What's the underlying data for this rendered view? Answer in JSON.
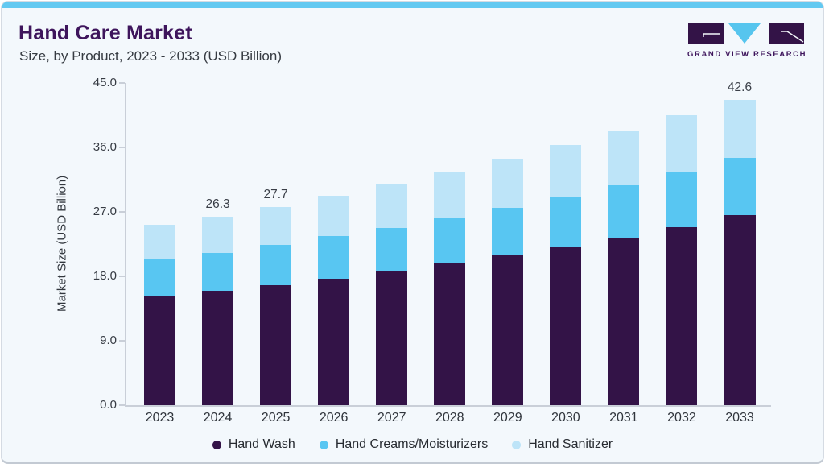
{
  "header": {
    "title": "Hand Care Market",
    "subtitle": "Size, by Product, 2023 - 2033 (USD Billion)",
    "logo": {
      "brand": "GRAND VIEW RESEARCH"
    }
  },
  "colors": {
    "accent_bar": "#63C9F1",
    "card_background": "#F3F8FC",
    "title_purple": "#3E155C",
    "axis_gray": "#C9CFD8",
    "hand_wash": "#331347",
    "hand_creams": "#58C6F2",
    "hand_sanitizer": "#BDE4F8"
  },
  "chart_data": {
    "type": "bar",
    "stacked": true,
    "title": "Hand Care Market Size, by Product, 2023 - 2033 (USD Billion)",
    "ylabel": "Market Size (USD Billion)",
    "xlabel": "",
    "ylim": [
      0,
      45
    ],
    "yticks": [
      0,
      9,
      18,
      27,
      36,
      45
    ],
    "ytick_labels": [
      "0.0",
      "9.0",
      "18.0",
      "27.0",
      "36.0",
      "45.0"
    ],
    "grid": false,
    "legend_position": "bottom",
    "categories": [
      "2023",
      "2024",
      "2025",
      "2026",
      "2027",
      "2028",
      "2029",
      "2030",
      "2031",
      "2032",
      "2033"
    ],
    "series": [
      {
        "name": "Hand Wash",
        "color": "#331347",
        "values": [
          15.2,
          16.0,
          16.8,
          17.7,
          18.7,
          19.8,
          21.0,
          22.2,
          23.4,
          24.9,
          26.5
        ]
      },
      {
        "name": "Hand Creams/Moisturizers",
        "color": "#58C6F2",
        "values": [
          5.2,
          5.3,
          5.6,
          5.9,
          6.1,
          6.3,
          6.6,
          6.9,
          7.3,
          7.6,
          8.0
        ]
      },
      {
        "name": "Hand Sanitizer",
        "color": "#BDE4F8",
        "values": [
          4.8,
          5.0,
          5.3,
          5.6,
          6.0,
          6.4,
          6.8,
          7.2,
          7.6,
          8.0,
          8.1
        ]
      }
    ],
    "total_labels": {
      "2024": "26.3",
      "2025": "27.7",
      "2033": "42.6"
    }
  }
}
